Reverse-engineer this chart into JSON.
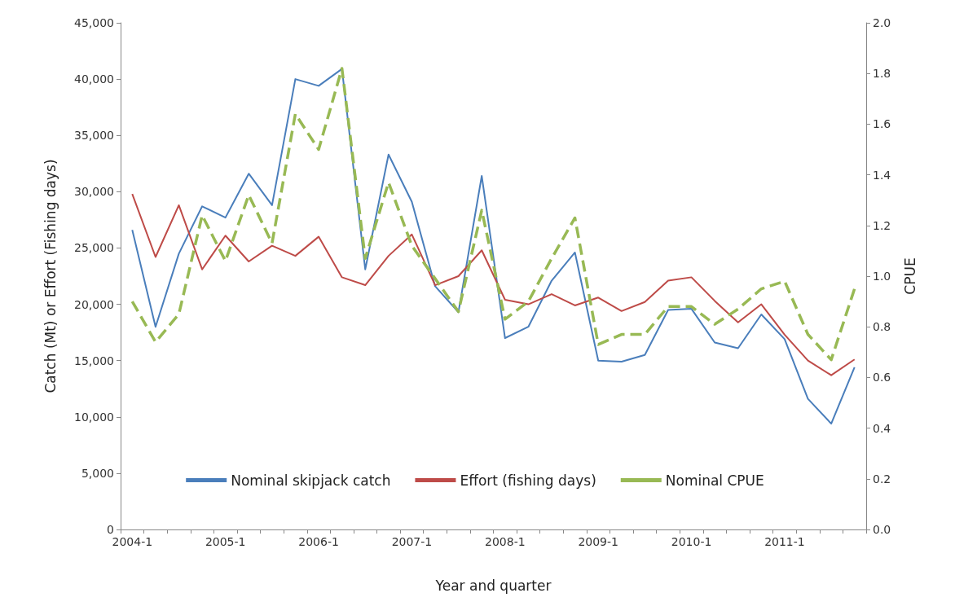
{
  "chart_data": {
    "type": "line",
    "xlabel": "Year and quarter",
    "ylabel": "Catch (Mt) or Effort (Fishing days)",
    "y2label": "CPUE",
    "categories": [
      "2004-1",
      null,
      null,
      null,
      "2005-1",
      null,
      null,
      null,
      "2006-1",
      null,
      null,
      null,
      "2007-1",
      null,
      null,
      null,
      "2008-1",
      null,
      null,
      null,
      "2009-1",
      null,
      null,
      null,
      "2010-1",
      null,
      null,
      null,
      "2011-1",
      null,
      null,
      null
    ],
    "series": [
      {
        "name": "Nominal skipjack catch",
        "color": "#4a7ebb",
        "line_style": "solid",
        "values": [
          26600,
          18000,
          24500,
          28700,
          27700,
          31600,
          28800,
          40000,
          39400,
          40900,
          23100,
          33300,
          29100,
          21600,
          19300,
          31400,
          17000,
          18000,
          22100,
          24600,
          15000,
          14900,
          15500,
          19500,
          19600,
          16600,
          16100,
          19100,
          16900,
          11600,
          9400,
          14400
        ]
      },
      {
        "name": "Effort (fishing days)",
        "color": "#be4b48",
        "line_style": "solid",
        "values": [
          29800,
          24200,
          28800,
          23100,
          26100,
          23800,
          25200,
          24300,
          26000,
          22400,
          21700,
          24300,
          26200,
          21700,
          22500,
          24800,
          20400,
          20000,
          20900,
          19900,
          20600,
          19400,
          20200,
          22100,
          22400,
          20300,
          18400,
          20000,
          17300,
          15000,
          13700,
          15100
        ]
      },
      {
        "name": "Nominal CPUE",
        "color": "#98b954",
        "axis": "y2",
        "line_style": "dashed",
        "values": [
          0.9,
          0.74,
          0.85,
          1.24,
          1.06,
          1.32,
          1.13,
          1.64,
          1.5,
          1.82,
          1.07,
          1.37,
          1.12,
          0.99,
          0.86,
          1.26,
          0.83,
          0.9,
          1.07,
          1.23,
          0.73,
          0.77,
          0.77,
          0.88,
          0.88,
          0.81,
          0.87,
          0.95,
          0.98,
          0.77,
          0.67,
          0.95
        ]
      }
    ],
    "ylim": [
      0,
      45000
    ],
    "yticks": [
      0,
      {
        "value": 5000,
        "label": "5,000"
      },
      {
        "value": 10000,
        "label": "10,000"
      },
      {
        "value": 15000,
        "label": "15,000"
      },
      {
        "value": 20000,
        "label": "20,000"
      },
      {
        "value": 25000,
        "label": "25,000"
      },
      {
        "value": 30000,
        "label": "30,000"
      },
      {
        "value": 35000,
        "label": "35,000"
      },
      {
        "value": 40000,
        "label": "40,000"
      },
      {
        "value": 45000,
        "label": "45,000"
      }
    ],
    "y2lim": [
      0,
      2
    ],
    "y2ticks": [
      {
        "value": 0,
        "label": "0.0"
      },
      0.2,
      0.4,
      0.6,
      0.8,
      {
        "value": 1,
        "label": "1.0"
      },
      1.2,
      1.4,
      1.6,
      1.8,
      {
        "value": 2,
        "label": "2.0"
      }
    ],
    "grid": false,
    "legend": "bottom",
    "marker": "none"
  }
}
